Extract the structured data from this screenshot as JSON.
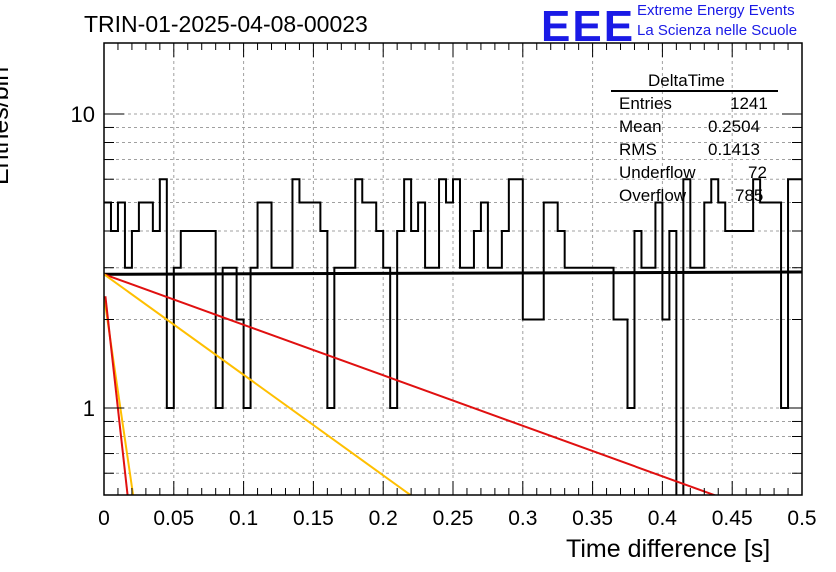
{
  "title": "TRIN-01-2025-04-08-00023",
  "logo": {
    "text": "EEE",
    "line1": "Extreme Energy Events",
    "line2": "La Scienza nelle Scuole",
    "color": "#1a1ae6"
  },
  "stats": {
    "name": "DeltaTime",
    "rows": [
      {
        "label": "Entries",
        "value": "1241"
      },
      {
        "label": "Mean",
        "value": "0.2504"
      },
      {
        "label": "RMS",
        "value": "0.1413"
      },
      {
        "label": "Underflow",
        "value": "72"
      },
      {
        "label": "Overflow",
        "value": "785"
      }
    ]
  },
  "chart_data": {
    "type": "histogram",
    "xlabel": "Time difference [s]",
    "ylabel": "Entries/bin",
    "xlim": [
      0,
      0.5
    ],
    "ylim": [
      0.5,
      17
    ],
    "yscale": "log",
    "grid": true,
    "x_ticks": [
      "0",
      "0.05",
      "0.1",
      "0.15",
      "0.2",
      "0.25",
      "0.3",
      "0.35",
      "0.4",
      "0.45",
      "0.5"
    ],
    "y_ticks": [
      "1",
      "10"
    ],
    "bin_width": 0.005,
    "counts": [
      5,
      4,
      5,
      3,
      4,
      5,
      5,
      4,
      6,
      1,
      3,
      4,
      4,
      4,
      4,
      4,
      1,
      3,
      3,
      2,
      1,
      3,
      5,
      5,
      3,
      3,
      3,
      6,
      5,
      5,
      5,
      4,
      1,
      3,
      3,
      3,
      6,
      5,
      5,
      4,
      3,
      1,
      4,
      6,
      4,
      5,
      3,
      3,
      6,
      5,
      6,
      3,
      3,
      4,
      5,
      3,
      3,
      4,
      6,
      6,
      2,
      2,
      2,
      5,
      5,
      4,
      3,
      3,
      3,
      3,
      3,
      3,
      3,
      2,
      2,
      1,
      4,
      3,
      3,
      5,
      2,
      4,
      0,
      6,
      3,
      3,
      5,
      6,
      5,
      4,
      4,
      4,
      4,
      6,
      5,
      5,
      5,
      1,
      6,
      6
    ],
    "fit_lines": [
      {
        "name": "flat",
        "color": "#000000",
        "x": [
          0,
          0.5
        ],
        "y": [
          2.85,
          2.9
        ]
      },
      {
        "name": "red_slow",
        "color": "#e01010",
        "x": [
          0,
          0.44
        ],
        "y": [
          2.85,
          0.5
        ]
      },
      {
        "name": "orange_mid",
        "color": "#ffbf00",
        "x": [
          0,
          0.221
        ],
        "y": [
          2.85,
          0.5
        ]
      },
      {
        "name": "orange_fast",
        "color": "#ffbf00",
        "x": [
          0,
          0.021
        ],
        "y": [
          2.4,
          0.5
        ]
      },
      {
        "name": "red_fast",
        "color": "#e01010",
        "x": [
          0.001,
          0.017
        ],
        "y": [
          2.4,
          0.5
        ]
      }
    ]
  }
}
